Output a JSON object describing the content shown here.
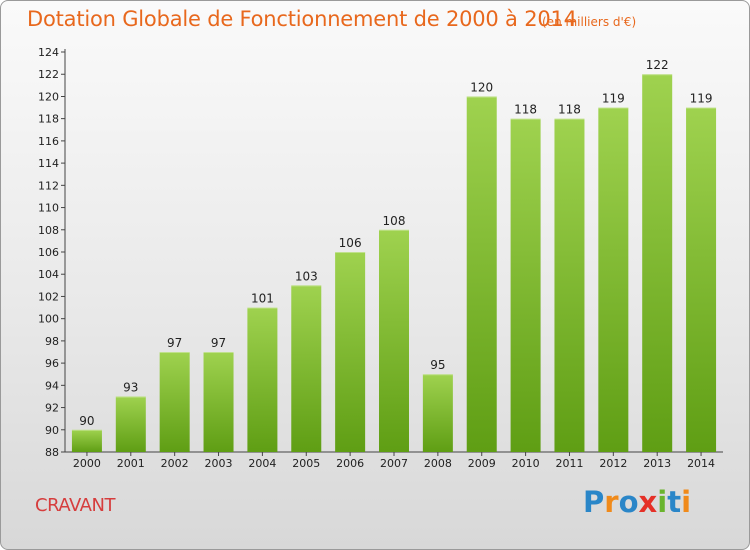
{
  "chart_data": {
    "type": "bar",
    "title": "Dotation Globale de Fonctionnement de 2000 à 2014",
    "subtitle": "(en milliers d'€)",
    "xlabel": "",
    "ylabel": "",
    "categories": [
      "2000",
      "2001",
      "2002",
      "2003",
      "2004",
      "2005",
      "2006",
      "2007",
      "2008",
      "2009",
      "2010",
      "2011",
      "2012",
      "2013",
      "2014"
    ],
    "values": [
      90,
      93,
      97,
      97,
      101,
      103,
      106,
      108,
      95,
      120,
      118,
      118,
      119,
      122,
      119
    ],
    "data_labels": [
      "90",
      "93",
      "97",
      "97",
      "101",
      "103",
      "106",
      "108",
      "95",
      "120",
      "118",
      "118",
      "119",
      "122",
      "119"
    ],
    "ylim": [
      88,
      124
    ],
    "y_ticks": [
      "88",
      "90",
      "92",
      "94",
      "96",
      "98",
      "100",
      "102",
      "104",
      "106",
      "108",
      "110",
      "112",
      "114",
      "116",
      "118",
      "120",
      "122",
      "124"
    ],
    "grid": false,
    "legend": "none",
    "bar_color_top": "#9fd24f",
    "bar_color_bottom": "#5f9e14"
  },
  "footer": {
    "commune": "CRAVANT",
    "logo_letters": [
      {
        "ch": "P",
        "color": "#2a86c8"
      },
      {
        "ch": "r",
        "color": "#f08a1a"
      },
      {
        "ch": "o",
        "color": "#2a86c8"
      },
      {
        "ch": "x",
        "color": "#e53027"
      },
      {
        "ch": "i",
        "color": "#6ab42d"
      },
      {
        "ch": "t",
        "color": "#2a86c8"
      },
      {
        "ch": "i",
        "color": "#f08a1a"
      }
    ]
  },
  "colors": {
    "title": "#e8681d",
    "commune": "#d63d3d",
    "axis": "#444444"
  }
}
